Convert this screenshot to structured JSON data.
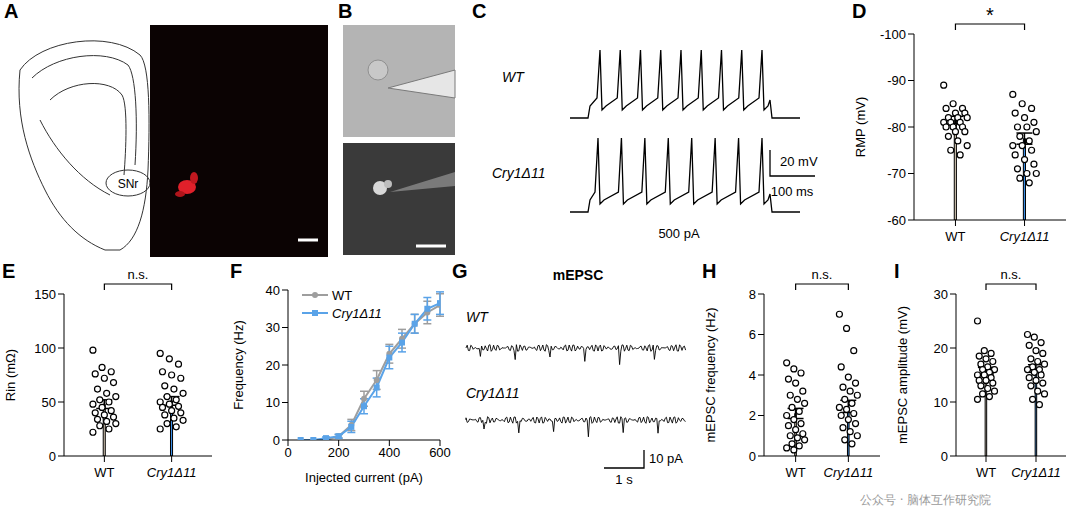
{
  "chart_data": [
    {
      "panel": "D",
      "type": "bar",
      "categories": [
        "WT",
        "Cry1Δ11"
      ],
      "y_label": "RMP (mV)",
      "ylim": [
        -60,
        -100
      ],
      "yticks": [
        -100,
        -90,
        -80,
        -70,
        -60
      ],
      "values": [
        -81.5,
        -77.5
      ],
      "errors": [
        0.8,
        1.2
      ],
      "colors": [
        "#d8ccb8",
        "#3c8fe6"
      ],
      "annotation": "*",
      "points": [
        [
          -89,
          -85,
          -84,
          -84,
          -83,
          -83,
          -82,
          -82,
          -82,
          -81,
          -81,
          -81,
          -80,
          -80,
          -80,
          -79,
          -79,
          -78,
          -77,
          -76,
          -75,
          -74
        ],
        [
          -87,
          -85,
          -84,
          -83,
          -82,
          -81,
          -80,
          -80,
          -79,
          -78,
          -77,
          -76,
          -76,
          -75,
          -74,
          -73,
          -72,
          -71,
          -70,
          -70,
          -69,
          -68
        ]
      ]
    },
    {
      "panel": "E",
      "type": "bar",
      "categories": [
        "WT",
        "Cry1Δ11"
      ],
      "y_label": "Rin (mΩ)",
      "ylim": [
        0,
        150
      ],
      "yticks": [
        0,
        50,
        100,
        150
      ],
      "values": [
        48,
        51
      ],
      "errors": [
        4,
        4
      ],
      "colors": [
        "#d8ccb8",
        "#3c8fe6"
      ],
      "annotation": "n.s.",
      "points": [
        [
          98,
          82,
          78,
          76,
          72,
          68,
          62,
          58,
          55,
          52,
          50,
          48,
          45,
          42,
          40,
          38,
          36,
          34,
          32,
          30,
          28,
          25,
          22
        ],
        [
          95,
          90,
          85,
          78,
          75,
          72,
          65,
          62,
          58,
          55,
          52,
          50,
          48,
          46,
          45,
          42,
          40,
          38,
          35,
          33,
          30,
          27,
          25
        ]
      ]
    },
    {
      "panel": "F",
      "type": "line",
      "x_label": "Injected current (pA)",
      "y_label": "Frequency (Hz)",
      "xlim": [
        0,
        600
      ],
      "xticks": [
        0,
        200,
        400,
        600
      ],
      "ylim": [
        0,
        40
      ],
      "yticks": [
        0,
        10,
        20,
        30,
        40
      ],
      "legend": "upper left",
      "x": [
        50,
        100,
        150,
        200,
        250,
        300,
        350,
        400,
        450,
        500,
        550,
        600
      ],
      "series": [
        {
          "name": "WT",
          "color": "#9e9e9e",
          "marker": "circle",
          "values": [
            0,
            0,
            0,
            1,
            4,
            11,
            16,
            23,
            27,
            31,
            34,
            36
          ],
          "errors": [
            0,
            0,
            0,
            0.5,
            1.5,
            2,
            2.5,
            2.5,
            2.5,
            2.5,
            3,
            3
          ]
        },
        {
          "name": "Cry1Δ11",
          "color": "#5aa3e8",
          "marker": "square",
          "values": [
            0,
            0,
            0.5,
            1,
            3.5,
            9,
            14,
            22,
            26,
            31,
            35,
            36.5
          ],
          "errors": [
            0,
            0,
            0.3,
            0.5,
            1.5,
            2,
            2.5,
            3,
            2.5,
            2.5,
            3,
            3
          ]
        }
      ]
    },
    {
      "panel": "H",
      "type": "bar",
      "categories": [
        "WT",
        "Cry1Δ11"
      ],
      "y_label": "mEPSC frequency (Hz)",
      "ylim": [
        0,
        8
      ],
      "yticks": [
        0,
        2,
        4,
        6,
        8
      ],
      "values": [
        2.1,
        2.45
      ],
      "errors": [
        0.25,
        0.3
      ],
      "colors": [
        "#d8ccb8",
        "#3c8fe6"
      ],
      "annotation": "n.s.",
      "points": [
        [
          4.6,
          4.3,
          4.1,
          3.8,
          3.6,
          3.2,
          3.0,
          2.8,
          2.6,
          2.4,
          2.2,
          2.0,
          1.8,
          1.6,
          1.5,
          1.3,
          1.1,
          1.0,
          0.9,
          0.8,
          0.6,
          0.5,
          0.4,
          0.3
        ],
        [
          7.0,
          6.3,
          5.2,
          4.4,
          3.9,
          3.6,
          3.4,
          3.2,
          3.0,
          2.8,
          2.6,
          2.4,
          2.3,
          2.1,
          2.0,
          1.8,
          1.6,
          1.4,
          1.2,
          1.0,
          0.8,
          0.6
        ]
      ]
    },
    {
      "panel": "I",
      "type": "bar",
      "categories": [
        "WT",
        "Cry1Δ11"
      ],
      "y_label": "mEPSC amplitude (mV)",
      "ylim": [
        0,
        30
      ],
      "yticks": [
        0,
        10,
        20,
        30
      ],
      "values": [
        15.8,
        16.2
      ],
      "errors": [
        0.6,
        0.7
      ],
      "colors": [
        "#d8ccb8",
        "#3c8fe6"
      ],
      "annotation": "n.s.",
      "points": [
        [
          25,
          19.5,
          19,
          18.5,
          18,
          17.5,
          17,
          16.5,
          16,
          16,
          15.5,
          15,
          15,
          14.5,
          14,
          14,
          13.5,
          13,
          12.5,
          12,
          11.5,
          11,
          10.5
        ],
        [
          22.5,
          22,
          21,
          20.5,
          19.5,
          19,
          18,
          17.5,
          17,
          16.5,
          16,
          16,
          15.5,
          15,
          14.5,
          14,
          13.5,
          13,
          12,
          11.5,
          10.5,
          9.5
        ]
      ]
    }
  ],
  "figure_panels": [
    {
      "letter": "A",
      "label": "SNr"
    },
    {
      "letter": "B"
    },
    {
      "letter": "C",
      "traces": [
        "WT",
        "Cry1Δ11"
      ],
      "scale_y": "20 mV",
      "scale_x": "100 ms",
      "stimulus": "500 pA"
    },
    {
      "letter": "G",
      "title": "mEPSC",
      "traces": [
        "WT",
        "Cry1Δ11"
      ],
      "scale_y": "10 pA",
      "scale_x": "1 s"
    }
  ],
  "watermark": "公众号 · 脑体互作研究院"
}
